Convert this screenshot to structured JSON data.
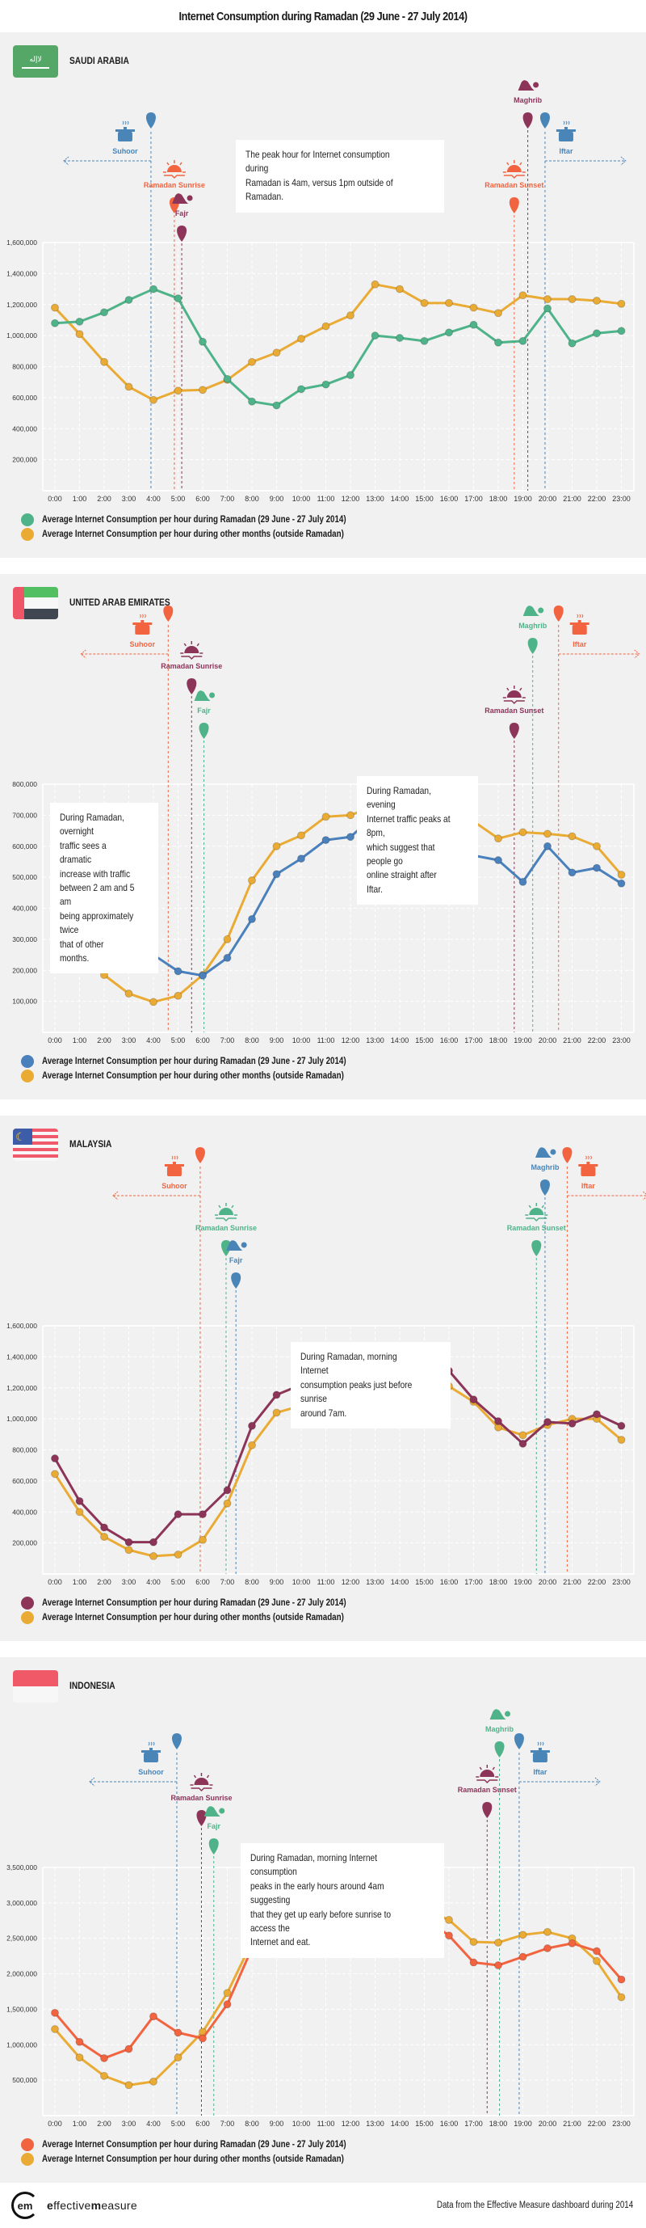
{
  "title": "Internet Consumption during Ramadan (29 June - 27 July 2014)",
  "footer": {
    "logo_mark": "em",
    "logo_text_bold1": "e",
    "logo_text_rest1": "ffective",
    "logo_text_bold2": "m",
    "logo_text_rest2": "easure",
    "source": "Data from the Effective Measure dashboard during 2014"
  },
  "legend": {
    "ramadan": "Average Internet Consumption per hour during Ramadan (29 June - 27 July 2014)",
    "other": "Average Internet Consumption per hour during other months (outside Ramadan)"
  },
  "chart_data": [
    {
      "type": "line",
      "country": "SAUDI ARABIA",
      "note": [
        "The peak hour for Internet consumption during",
        "Ramadan is 4am, versus 1pm outside of Ramadan."
      ],
      "x": [
        "0:00",
        "1:00",
        "2:00",
        "3:00",
        "4:00",
        "5:00",
        "6:00",
        "7:00",
        "8:00",
        "9:00",
        "10:00",
        "11:00",
        "12:00",
        "13:00",
        "14:00",
        "15:00",
        "16:00",
        "17:00",
        "18:00",
        "19:00",
        "20:00",
        "21:00",
        "22:00",
        "23:00"
      ],
      "ylim": [
        0,
        1600000
      ],
      "yticks": [
        "200,000",
        "400,000",
        "600,000",
        "800,000",
        "1,000,000",
        "1,200,000",
        "1,400,000",
        "1,600,000"
      ],
      "grid": true,
      "legend_position": "bottom-left",
      "series": [
        {
          "name": "Average Internet Consumption per hour during Ramadan (29 June - 27 July 2014)",
          "color": "#4fb38a",
          "values": [
            1080000,
            1090000,
            1150000,
            1230000,
            1300000,
            1240000,
            960000,
            720000,
            575000,
            550000,
            655000,
            685000,
            745000,
            1000000,
            985000,
            965000,
            1020000,
            1070000,
            955000,
            965000,
            1175000,
            950000,
            1015000,
            1030000
          ]
        },
        {
          "name": "Average Internet Consumption per hour during other months (outside Ramadan)",
          "color": "#eaab34",
          "values": [
            1180000,
            1010000,
            830000,
            670000,
            585000,
            645000,
            650000,
            715000,
            830000,
            890000,
            980000,
            1060000,
            1130000,
            1330000,
            1300000,
            1210000,
            1210000,
            1180000,
            1145000,
            1260000,
            1235000,
            1235000,
            1225000,
            1205000
          ]
        }
      ],
      "markers": [
        {
          "label": "Suhoor",
          "hour": 3.9,
          "color": "#4a85b8",
          "icon": "pot-icon",
          "arrow": "left"
        },
        {
          "label": "Ramadan Sunrise",
          "hour": 4.85,
          "color": "#f26440",
          "icon": "sunrise-icon"
        },
        {
          "label": "Fajr",
          "hour": 5.15,
          "color": "#8c3559",
          "icon": "prayer-icon"
        },
        {
          "label": "Ramadan Sunset",
          "hour": 18.65,
          "color": "#f26440",
          "icon": "sunset-icon"
        },
        {
          "label": "Maghrib",
          "hour": 19.2,
          "color": "#8c3559",
          "icon": "prayer-icon"
        },
        {
          "label": "Iftar",
          "hour": 19.9,
          "color": "#4a85b8",
          "icon": "pot-icon",
          "arrow": "right"
        }
      ]
    },
    {
      "type": "line",
      "country": "UNITED ARAB EMIRATES",
      "note": [
        "During Ramadan, evening",
        "Internet traffic peaks at 8pm,",
        "which suggest that people go",
        "online straight after Iftar."
      ],
      "note2": [
        "During Ramadan, overnight",
        "traffic sees a dramatic",
        "increase with traffic",
        "between 2 am and 5 am",
        "being approximately twice",
        "that of other months."
      ],
      "x": [
        "0:00",
        "1:00",
        "2:00",
        "3:00",
        "4:00",
        "5:00",
        "6:00",
        "7:00",
        "8:00",
        "9:00",
        "10:00",
        "11:00",
        "12:00",
        "13:00",
        "14:00",
        "15:00",
        "16:00",
        "17:00",
        "18:00",
        "19:00",
        "20:00",
        "21:00",
        "22:00",
        "23:00"
      ],
      "ylim": [
        0,
        800000
      ],
      "yticks": [
        "100,000",
        "200,000",
        "300,000",
        "400,000",
        "500,000",
        "600,000",
        "700,000",
        "800,000"
      ],
      "grid": true,
      "legend_position": "bottom-left",
      "series": [
        {
          "name": "Average Internet Consumption per hour during Ramadan (29 June - 27 July 2014)",
          "color": "#4a80bb",
          "values": [
            430000,
            355000,
            305000,
            265000,
            250000,
            197000,
            183000,
            240000,
            365000,
            510000,
            560000,
            620000,
            630000,
            700000,
            685000,
            615000,
            565000,
            570000,
            555000,
            485000,
            600000,
            515000,
            530000,
            480000
          ]
        },
        {
          "name": "Average Internet Consumption per hour during other months (outside Ramadan)",
          "color": "#eaab34",
          "values": [
            405000,
            283000,
            185000,
            125000,
            98000,
            118000,
            185000,
            300000,
            490000,
            600000,
            635000,
            695000,
            700000,
            730000,
            730000,
            705000,
            687000,
            680000,
            625000,
            645000,
            640000,
            632000,
            600000,
            508000
          ]
        }
      ],
      "markers": [
        {
          "label": "Suhoor",
          "hour": 4.6,
          "color": "#f26440",
          "icon": "pot-icon",
          "arrow": "left"
        },
        {
          "label": "Ramadan Sunrise",
          "hour": 5.55,
          "color": "#8c3559",
          "icon": "sunrise-icon"
        },
        {
          "label": "Fajr",
          "hour": 6.05,
          "color": "#4fb38a",
          "icon": "prayer-icon"
        },
        {
          "label": "Ramadan Sunset",
          "hour": 18.65,
          "color": "#8c3559",
          "icon": "sunset-icon"
        },
        {
          "label": "Maghrib",
          "hour": 19.4,
          "color": "#4fb38a",
          "icon": "prayer-icon"
        },
        {
          "label": "Iftar",
          "hour": 20.45,
          "color": "#f26440",
          "icon": "pot-icon",
          "arrow": "right"
        }
      ]
    },
    {
      "type": "line",
      "country": "MALAYSIA",
      "note": [
        "During Ramadan, morning Internet",
        "consumption peaks just before sunrise",
        "around 7am."
      ],
      "x": [
        "0:00",
        "1:00",
        "2:00",
        "3:00",
        "4:00",
        "5:00",
        "6:00",
        "7:00",
        "8:00",
        "9:00",
        "10:00",
        "11:00",
        "12:00",
        "13:00",
        "14:00",
        "15:00",
        "16:00",
        "17:00",
        "18:00",
        "19:00",
        "20:00",
        "21:00",
        "22:00",
        "23:00"
      ],
      "ylim": [
        0,
        1600000
      ],
      "yticks": [
        "200,000",
        "400,000",
        "600,000",
        "800,000",
        "1,000,000",
        "1,200,000",
        "1,400,000",
        "1,600,000"
      ],
      "grid": true,
      "legend_position": "bottom-left",
      "series": [
        {
          "name": "Average Internet Consumption per hour during Ramadan (29 June - 27 July 2014)",
          "color": "#8c3559",
          "values": [
            745000,
            470000,
            300000,
            205000,
            205000,
            385000,
            385000,
            540000,
            955000,
            1155000,
            1220000,
            1290000,
            1325000,
            1270000,
            1325000,
            1365000,
            1310000,
            1125000,
            985000,
            840000,
            980000,
            970000,
            1030000,
            955000
          ]
        },
        {
          "name": "Average Internet Consumption per hour during other months (outside Ramadan)",
          "color": "#eaab34",
          "values": [
            645000,
            400000,
            240000,
            155000,
            115000,
            125000,
            220000,
            455000,
            830000,
            1040000,
            1085000,
            1135000,
            1135000,
            1070000,
            1150000,
            1215000,
            1210000,
            1110000,
            945000,
            895000,
            960000,
            1000000,
            1000000,
            865000
          ]
        }
      ],
      "markers": [
        {
          "label": "Suhoor",
          "hour": 5.9,
          "color": "#f26440",
          "icon": "pot-icon",
          "arrow": "left"
        },
        {
          "label": "Ramadan Sunrise",
          "hour": 6.95,
          "color": "#4fb38a",
          "icon": "sunrise-icon"
        },
        {
          "label": "Fajr",
          "hour": 7.35,
          "color": "#4a85b8",
          "icon": "prayer-icon"
        },
        {
          "label": "Ramadan Sunset",
          "hour": 19.55,
          "color": "#4fb38a",
          "icon": "sunset-icon"
        },
        {
          "label": "Maghrib",
          "hour": 19.9,
          "color": "#4a85b8",
          "icon": "prayer-icon"
        },
        {
          "label": "Iftar",
          "hour": 20.8,
          "color": "#f26440",
          "icon": "pot-icon",
          "arrow": "right"
        }
      ]
    },
    {
      "type": "line",
      "country": "INDONESIA",
      "note": [
        "During Ramadan, morning Internet consumption",
        "peaks in the early hours around 4am suggesting",
        "that they get up early before sunrise to access the",
        "Internet and eat."
      ],
      "x": [
        "0:00",
        "1:00",
        "2:00",
        "3:00",
        "4:00",
        "5:00",
        "6:00",
        "7:00",
        "8:00",
        "9:00",
        "10:00",
        "11:00",
        "12:00",
        "13:00",
        "14:00",
        "15:00",
        "16:00",
        "17:00",
        "18:00",
        "19:00",
        "20:00",
        "21:00",
        "22:00",
        "23:00"
      ],
      "ylim": [
        0,
        3500000
      ],
      "yticks": [
        "500,000",
        "1,000,000",
        "1,500,000",
        "2,000,000",
        "2,500,000",
        "3,000,000",
        "3,500,000"
      ],
      "grid": true,
      "legend_position": "bottom-left",
      "series": [
        {
          "name": "Average Internet Consumption per hour during Ramadan (29 June - 27 July 2014)",
          "color": "#f26440",
          "values": [
            1450000,
            1040000,
            810000,
            940000,
            1400000,
            1170000,
            1090000,
            1570000,
            2360000,
            2720000,
            2920000,
            3000000,
            2920000,
            3000000,
            3000000,
            2790000,
            2540000,
            2160000,
            2120000,
            2240000,
            2360000,
            2430000,
            2320000,
            1920000
          ]
        },
        {
          "name": "Average Internet Consumption per hour during other months (outside Ramadan)",
          "color": "#eaab34",
          "values": [
            1220000,
            820000,
            560000,
            430000,
            480000,
            820000,
            1180000,
            1730000,
            2450000,
            2750000,
            2870000,
            2940000,
            2810000,
            2950000,
            3000000,
            2910000,
            2760000,
            2450000,
            2440000,
            2550000,
            2590000,
            2500000,
            2180000,
            1670000
          ]
        }
      ],
      "markers": [
        {
          "label": "Suhoor",
          "hour": 4.95,
          "color": "#4a85b8",
          "icon": "pot-icon",
          "arrow": "left"
        },
        {
          "label": "Ramadan Sunrise",
          "hour": 5.95,
          "color": "#8c3559",
          "icon": "sunrise-icon"
        },
        {
          "label": "Fajr",
          "hour": 6.45,
          "color": "#4fb38a",
          "icon": "prayer-icon"
        },
        {
          "label": "Ramadan Sunset",
          "hour": 17.55,
          "color": "#8c3559",
          "icon": "sunset-icon"
        },
        {
          "label": "Maghrib",
          "hour": 18.05,
          "color": "#4fb38a",
          "icon": "prayer-icon"
        },
        {
          "label": "Iftar",
          "hour": 18.85,
          "color": "#4a85b8",
          "icon": "pot-icon",
          "arrow": "right"
        }
      ]
    }
  ]
}
